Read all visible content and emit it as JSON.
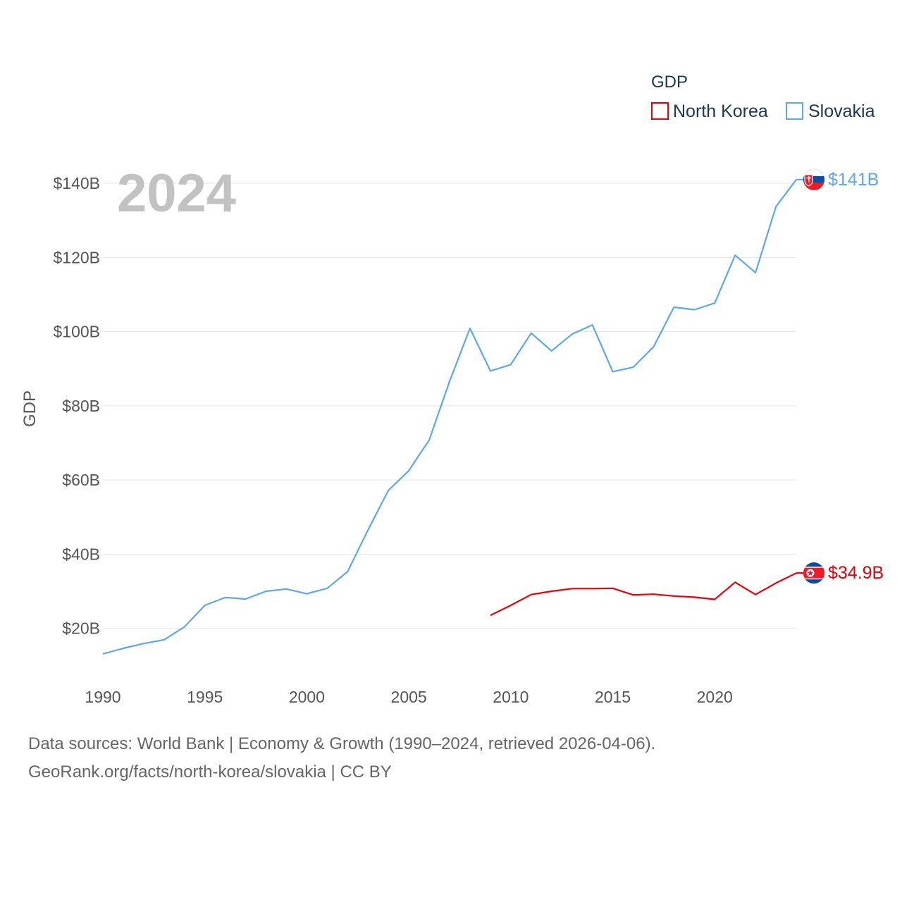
{
  "chart_data": {
    "type": "line",
    "title": "",
    "year_label": "2024",
    "xlabel": "",
    "ylabel": "GDP",
    "xlim": [
      1990,
      2024
    ],
    "ylim": [
      7,
      148
    ],
    "x_ticks": [
      1990,
      1995,
      2000,
      2005,
      2010,
      2015,
      2020
    ],
    "x_tick_labels": [
      "1990",
      "1995",
      "2000",
      "2005",
      "2010",
      "2015",
      "2020"
    ],
    "y_ticks": [
      20,
      40,
      60,
      80,
      100,
      120,
      140
    ],
    "y_tick_labels": [
      "$20B",
      "$40B",
      "$60B",
      "$80B",
      "$100B",
      "$120B",
      "$140B"
    ],
    "legend": {
      "title": "GDP",
      "position": "top-right"
    },
    "series": [
      {
        "name": "North Korea",
        "color": "#e8000b",
        "end_label": "$34.9B",
        "flag_icon": "north-korea-flag-icon",
        "x": [
          2009,
          2010,
          2011,
          2012,
          2013,
          2014,
          2015,
          2016,
          2017,
          2018,
          2019,
          2020,
          2021,
          2022,
          2023,
          2024
        ],
        "values": [
          23.5,
          26.2,
          29.1,
          30.0,
          30.7,
          30.7,
          30.8,
          29.0,
          29.2,
          28.7,
          28.4,
          27.8,
          32.4,
          29.1,
          32.2,
          34.9
        ]
      },
      {
        "name": "Slovakia",
        "color": "#5fa8e6",
        "end_label": "$141B",
        "flag_icon": "slovakia-flag-icon",
        "x": [
          1990,
          1991,
          1992,
          1993,
          1994,
          1995,
          1996,
          1997,
          1998,
          1999,
          2000,
          2001,
          2002,
          2003,
          2004,
          2005,
          2006,
          2007,
          2008,
          2009,
          2010,
          2011,
          2012,
          2013,
          2014,
          2015,
          2016,
          2017,
          2018,
          2019,
          2020,
          2021,
          2022,
          2023,
          2024
        ],
        "values": [
          13.1,
          14.6,
          15.9,
          16.9,
          20.4,
          26.2,
          28.3,
          27.9,
          30.0,
          30.6,
          29.3,
          30.8,
          35.3,
          46.5,
          57.2,
          62.5,
          70.8,
          86.6,
          100.9,
          89.4,
          91.1,
          99.6,
          94.8,
          99.3,
          101.8,
          89.2,
          90.4,
          95.9,
          106.6,
          105.9,
          107.7,
          120.6,
          115.9,
          133.7,
          141.0
        ]
      }
    ]
  },
  "footer": {
    "line1": "Data sources: World Bank | Economy & Growth (1990–2024, retrieved 2026-04-06).",
    "line2": "GeoRank.org/facts/north-korea/slovakia | CC BY"
  }
}
